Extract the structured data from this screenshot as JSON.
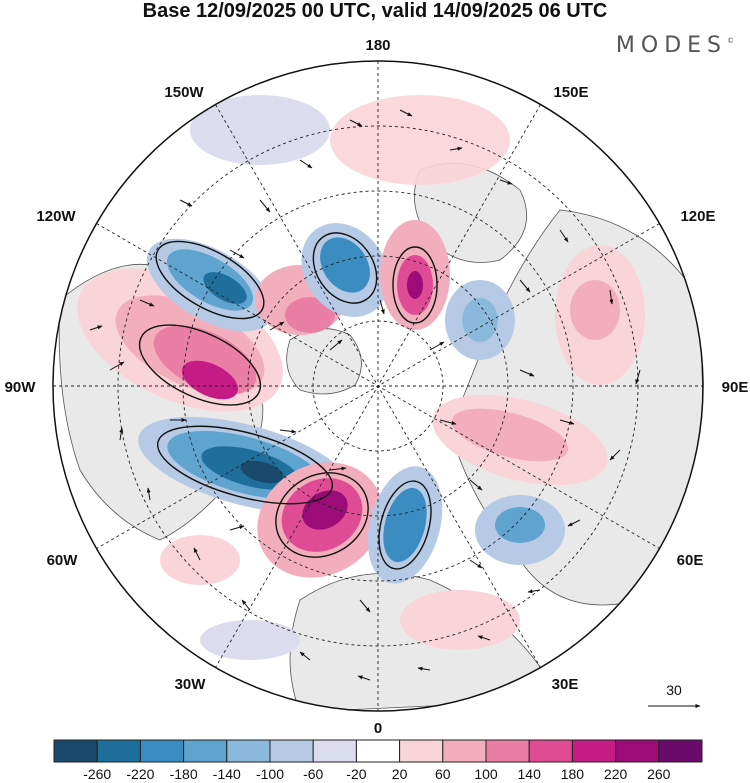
{
  "title": "Base 12/09/2025 00 UTC, valid 14/09/2025 06 UTC",
  "brand": {
    "name": "MODES",
    "mark": "©"
  },
  "map": {
    "projection": "north-polar-stereographic",
    "longitude_labels": {
      "top": "180",
      "bottom": "0",
      "left": "90W",
      "right": "90E",
      "nw": "150W",
      "ne": "150E",
      "wnw": "120W",
      "ene": "120E",
      "wsw": "60W",
      "ese": "60E",
      "sw": "30W",
      "se": "30E"
    },
    "vector_scale_label": "30"
  },
  "colorbar": {
    "ticks": [
      "-260",
      "-220",
      "-180",
      "-140",
      "-100",
      "-60",
      "-20",
      "20",
      "60",
      "100",
      "140",
      "180",
      "220",
      "260"
    ],
    "colors": [
      "#1a4a6b",
      "#1f6f9c",
      "#3b8cc0",
      "#5fa3cf",
      "#8bb9dc",
      "#b6cae6",
      "#dcdcef",
      "#ffffff",
      "#f9d4d8",
      "#f2aebd",
      "#ea7fa6",
      "#df4c95",
      "#c51b85",
      "#9c0c79",
      "#6a0a6a"
    ]
  }
}
